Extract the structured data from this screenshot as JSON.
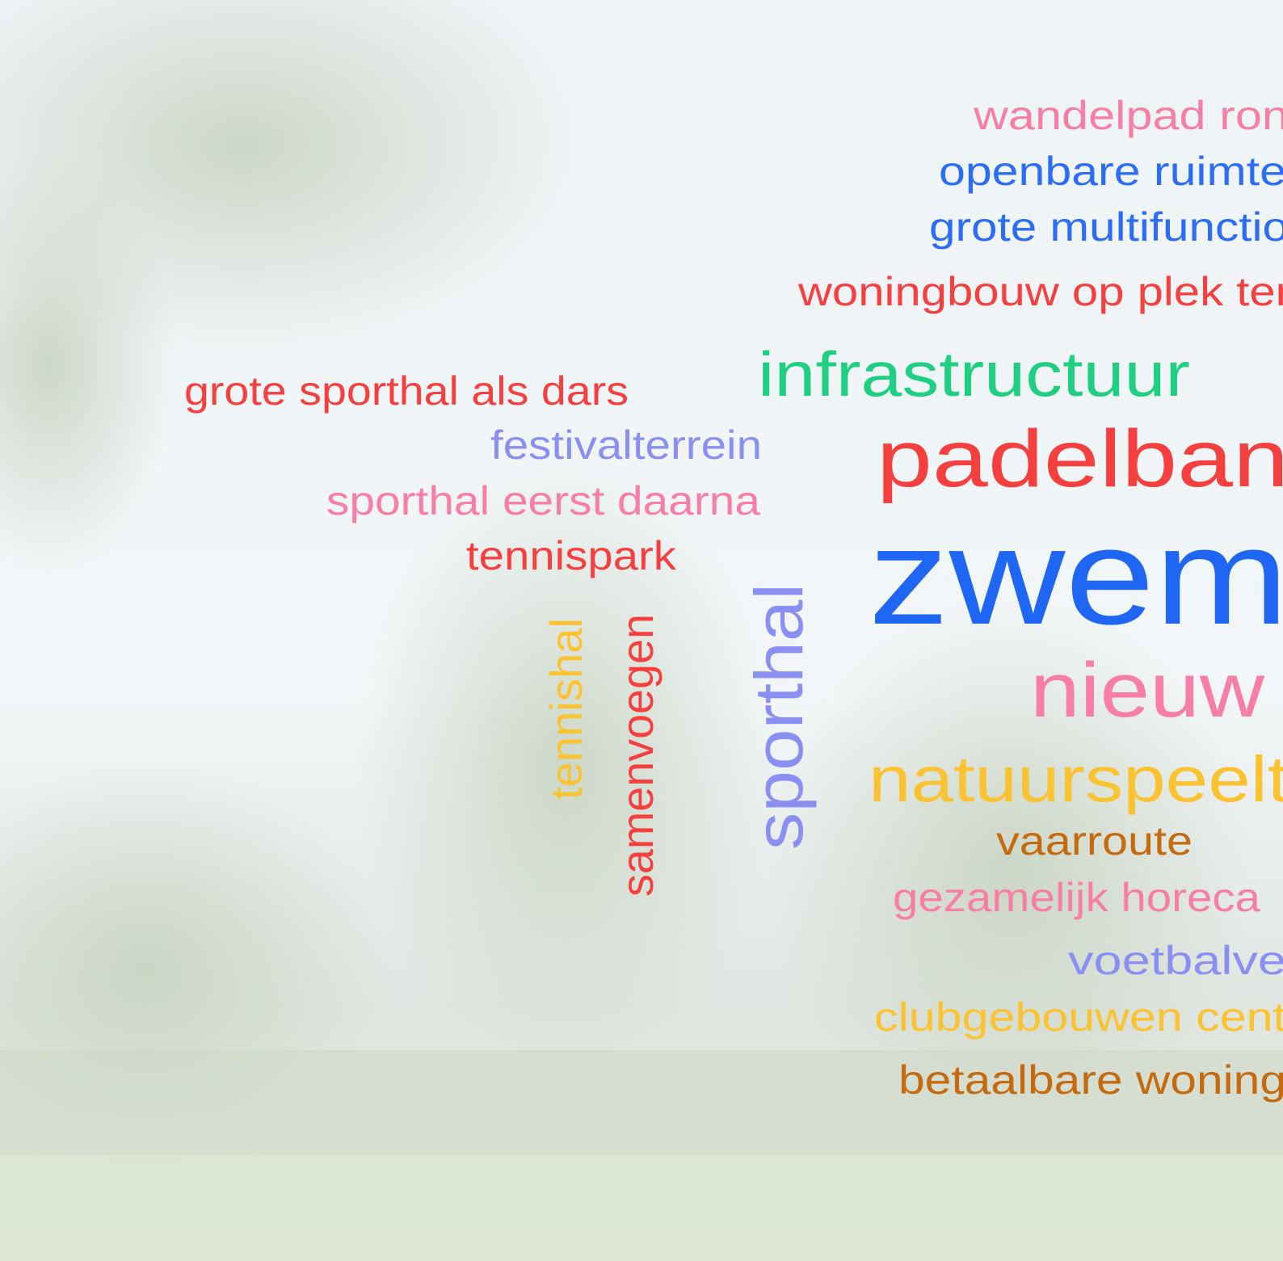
{
  "words": [
    {
      "text": "wandelpad ron",
      "color": "#f77fa6"
    },
    {
      "text": "openbare ruimte",
      "color": "#2d6cf5"
    },
    {
      "text": "grote multifunctio",
      "color": "#2d6cf5"
    },
    {
      "text": "woningbouw op plek ter",
      "color": "#f5403f"
    },
    {
      "text": "infrastructuur",
      "color": "#20cf82"
    },
    {
      "text": "padelban",
      "color": "#f5403f"
    },
    {
      "text": "zwem",
      "color": "#1f66f5"
    },
    {
      "text": "nieuw",
      "color": "#f77fa6"
    },
    {
      "text": "natuurspeelt",
      "color": "#fbc232"
    },
    {
      "text": "vaarroute",
      "color": "#c66a0f"
    },
    {
      "text": "gezamelijk horeca",
      "color": "#f77fa6"
    },
    {
      "text": "voetbalve",
      "color": "#8a8ff2"
    },
    {
      "text": "clubgebouwen cent",
      "color": "#fbc232"
    },
    {
      "text": "betaalbare woning",
      "color": "#c66a0f"
    },
    {
      "text": "grote sporthal als dars",
      "color": "#f5403f"
    },
    {
      "text": "festivalterrein",
      "color": "#8a8ff2"
    },
    {
      "text": "sporthal eerst daarna",
      "color": "#f77fa6"
    },
    {
      "text": "tennispark",
      "color": "#f5403f"
    },
    {
      "text": "tennishal",
      "color": "#fbc232"
    },
    {
      "text": "samenvoegen",
      "color": "#f5403f"
    },
    {
      "text": "sporthal",
      "color": "#8a8ff2"
    }
  ]
}
